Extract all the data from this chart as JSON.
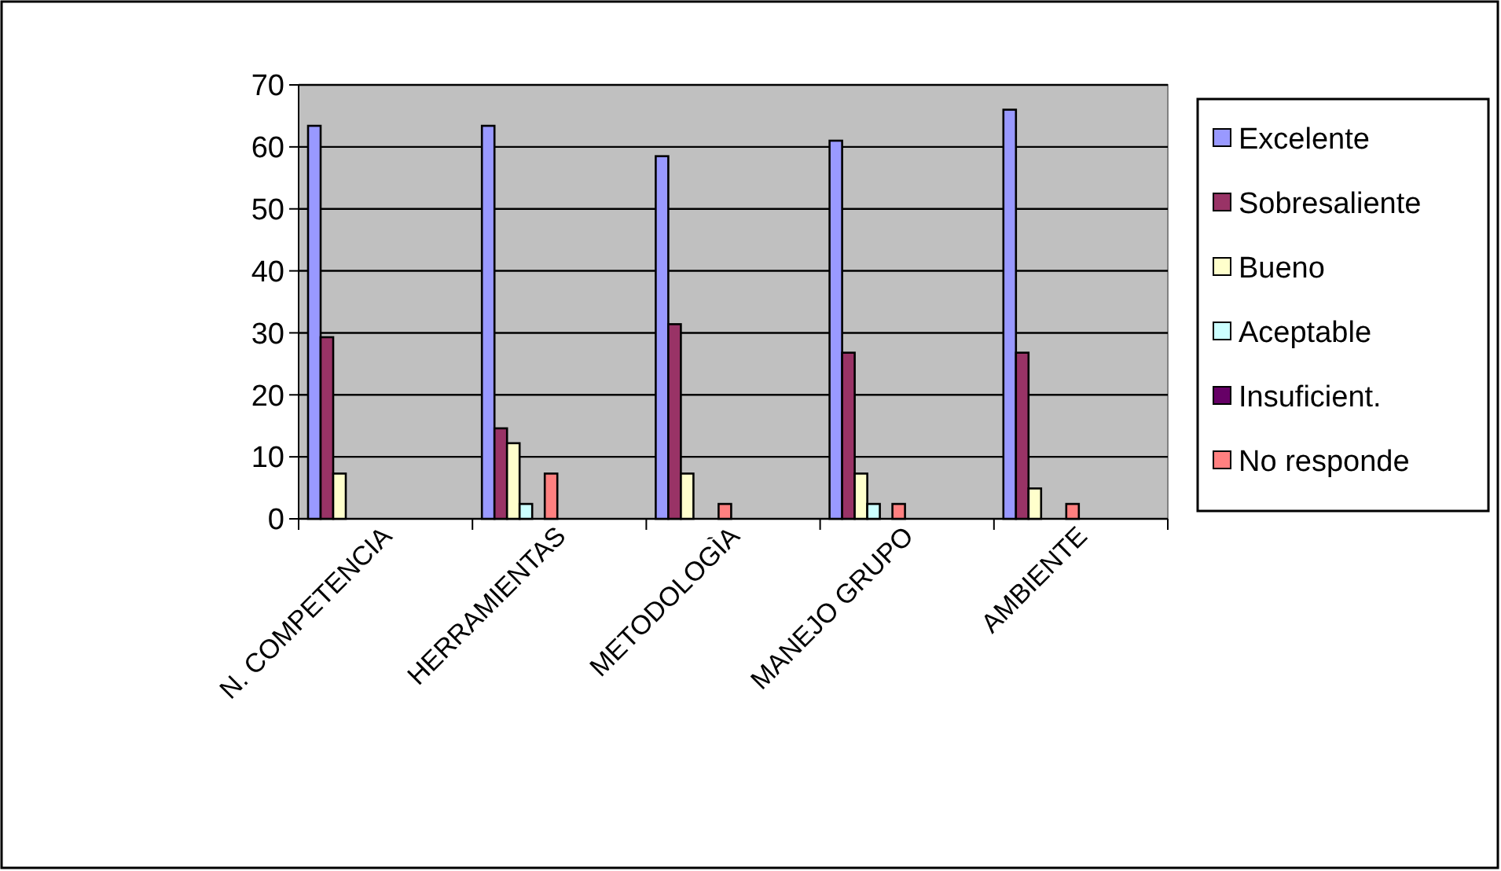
{
  "chart_data": {
    "type": "bar",
    "categories": [
      "N. COMPETENCIA",
      "HERRAMIENTAS",
      "METODOLOGÌA",
      "MANEJO GRUPO",
      "AMBIENTE"
    ],
    "series": [
      {
        "name": "Excelente",
        "color": "#9999ff",
        "values": [
          63.4,
          63.4,
          58.5,
          61,
          66
        ]
      },
      {
        "name": "Sobresaliente",
        "color": "#993366",
        "values": [
          29.3,
          14.6,
          31.4,
          26.8,
          26.8
        ]
      },
      {
        "name": "Bueno",
        "color": "#ffffcc",
        "values": [
          7.3,
          12.2,
          7.3,
          7.3,
          4.9
        ]
      },
      {
        "name": "Aceptable",
        "color": "#ccffff",
        "values": [
          0,
          2.4,
          0,
          2.4,
          0
        ]
      },
      {
        "name": "Insuficient.",
        "color": "#660066",
        "values": [
          0,
          0,
          0,
          0,
          0
        ]
      },
      {
        "name": "No responde",
        "color": "#ff8080",
        "values": [
          0,
          7.3,
          2.4,
          2.4,
          2.4
        ]
      }
    ],
    "ylim": [
      0,
      70
    ],
    "yticks": [
      0,
      10,
      20,
      30,
      40,
      50,
      60,
      70
    ],
    "grid": "y",
    "legend": "right"
  }
}
